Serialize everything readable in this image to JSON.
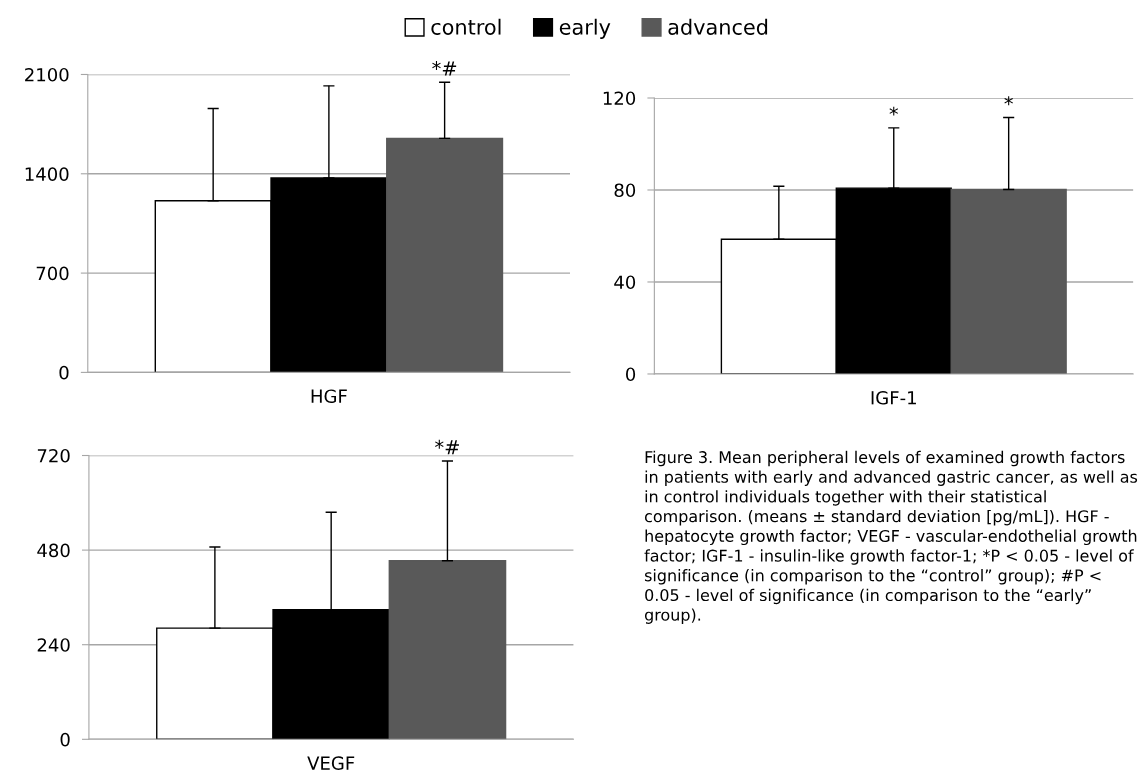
{
  "chart_data": [
    {
      "type": "bar",
      "categories": [
        "HGF"
      ],
      "ylim": [
        0,
        2100
      ],
      "yticks": [
        0,
        700,
        1400,
        2100
      ],
      "grid": "y",
      "legend": "top",
      "annotations": [
        "*#"
      ],
      "series": [
        {
          "name": "control",
          "color": "#ffffff",
          "values": [
            1210
          ],
          "errors": [
            [
              1210,
              1860
            ]
          ]
        },
        {
          "name": "early",
          "color": "#000000",
          "values": [
            1370
          ],
          "errors": [
            [
              1370,
              2020
            ]
          ]
        },
        {
          "name": "advanced",
          "color": "#595959",
          "values": [
            1650
          ],
          "errors": [
            [
              1650,
              2045
            ]
          ]
        }
      ]
    },
    {
      "type": "bar",
      "categories": [
        "IGF-1"
      ],
      "ylim": [
        0,
        120
      ],
      "yticks": [
        0,
        40,
        80,
        120
      ],
      "grid": "y",
      "annotations": [
        "*",
        "*"
      ],
      "series": [
        {
          "color": "#ffffff",
          "values": [
            58.6
          ],
          "errors": [
            [
              58.6,
              81.6
            ]
          ]
        },
        {
          "color": "#000000",
          "values": [
            80.8
          ],
          "errors": [
            [
              80.8,
              107
            ]
          ]
        },
        {
          "color": "#595959",
          "values": [
            80.2
          ],
          "errors": [
            [
              80.2,
              111.5
            ]
          ]
        }
      ]
    },
    {
      "type": "bar",
      "categories": [
        "VEGF"
      ],
      "ylim": [
        0,
        720
      ],
      "yticks": [
        0,
        240,
        480,
        720
      ],
      "grid": "y",
      "annotations": [
        "*#"
      ],
      "series": [
        {
          "color": "#ffffff",
          "values": [
            282
          ],
          "errors": [
            [
              282,
              488
            ]
          ]
        },
        {
          "color": "#000000",
          "values": [
            329
          ],
          "errors": [
            [
              329,
              576
            ]
          ]
        },
        {
          "color": "#595959",
          "values": [
            453
          ],
          "errors": [
            [
              453,
              706
            ]
          ]
        }
      ]
    },
    {
      "type": "other",
      "annotations": [
        "Figure 3. Mean peripheral levels of examined growth factors in patients with early and advanced gastric cancer, as well as in control individuals together with their statistical comparison. (means ± standard deviation [pg/mL]). HGF - hepatocyte growth factor; VEGF - vascular-endothelial growth factor; IGF-1 - insulin-like growth factor-1; *P < 0.05 - level of significance (in comparison to the “control” group); #P < 0.05 - level of significance (in comparison to the “early” group)."
      ]
    }
  ]
}
